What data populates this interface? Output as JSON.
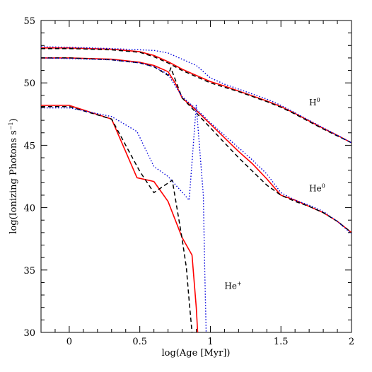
{
  "chart_data": {
    "type": "line",
    "xlabel": "log(Age [Myr])",
    "ylabel_main": "log(Ionizing Photons s",
    "ylabel_sup": "−1",
    "ylabel_close": ")",
    "xlim": [
      -0.2,
      2.0
    ],
    "ylim": [
      30,
      55
    ],
    "xticks": [
      0,
      0.5,
      1,
      1.5,
      2
    ],
    "xtick_labels": [
      "0",
      "0.5",
      "1",
      "1.5",
      "2"
    ],
    "yticks": [
      30,
      35,
      40,
      45,
      50,
      55
    ],
    "ytick_labels": [
      "30",
      "35",
      "40",
      "45",
      "50",
      "55"
    ],
    "grid": false,
    "annotations": [
      {
        "base": "H",
        "sup": "0",
        "x": 1.7,
        "y": 48.2
      },
      {
        "base": "He",
        "sup": "0",
        "x": 1.7,
        "y": 41.3
      },
      {
        "base": "He",
        "sup": "+",
        "x": 1.1,
        "y": 33.5
      }
    ],
    "series": [
      {
        "group": "H0",
        "color": "#ff0000",
        "dash": "solid",
        "width": 1.6,
        "x": [
          -0.2,
          0.0,
          0.3,
          0.5,
          0.6,
          0.7,
          0.8,
          0.9,
          1.0,
          1.1,
          1.2,
          1.3,
          1.4,
          1.5,
          1.6,
          1.7,
          1.8,
          1.9,
          2.0
        ],
        "y": [
          52.8,
          52.8,
          52.7,
          52.5,
          52.2,
          51.7,
          51.1,
          50.6,
          50.1,
          49.75,
          49.35,
          48.95,
          48.55,
          48.1,
          47.55,
          46.95,
          46.35,
          45.8,
          45.2
        ]
      },
      {
        "group": "H0",
        "color": "#000000",
        "dash": "6,4",
        "width": 1.5,
        "x": [
          -0.2,
          0.0,
          0.3,
          0.5,
          0.6,
          0.7,
          0.8,
          0.9,
          1.0,
          1.1,
          1.2,
          1.3,
          1.4,
          1.5,
          1.6,
          1.7,
          1.8,
          1.9,
          2.0
        ],
        "y": [
          52.75,
          52.75,
          52.65,
          52.45,
          52.1,
          51.6,
          51.0,
          50.5,
          50.0,
          49.65,
          49.3,
          48.9,
          48.5,
          48.05,
          47.5,
          46.9,
          46.3,
          45.75,
          45.2
        ]
      },
      {
        "group": "H0",
        "color": "#0000dd",
        "dash": "1.5,2.5",
        "width": 1.4,
        "x": [
          -0.2,
          0.0,
          0.3,
          0.6,
          0.7,
          0.8,
          0.9,
          1.0,
          1.1,
          1.2,
          1.3,
          1.4,
          1.5,
          1.6,
          1.7,
          1.8,
          1.9,
          2.0
        ],
        "y": [
          52.9,
          52.85,
          52.75,
          52.6,
          52.4,
          51.9,
          51.4,
          50.4,
          49.9,
          49.5,
          49.1,
          48.7,
          48.2,
          47.6,
          47.0,
          46.4,
          45.8,
          45.2
        ]
      },
      {
        "group": "He0",
        "color": "#ff0000",
        "dash": "solid",
        "width": 1.6,
        "x": [
          -0.2,
          0.0,
          0.3,
          0.5,
          0.6,
          0.7,
          0.75,
          0.8,
          0.9,
          1.0,
          1.1,
          1.2,
          1.3,
          1.4,
          1.5,
          1.6,
          1.7,
          1.8,
          1.9,
          2.0
        ],
        "y": [
          52.0,
          52.0,
          51.9,
          51.65,
          51.4,
          50.9,
          50.0,
          48.8,
          47.8,
          46.7,
          45.6,
          44.5,
          43.5,
          42.3,
          41.0,
          40.6,
          40.1,
          39.6,
          38.9,
          38.0
        ]
      },
      {
        "group": "He0",
        "color": "#000000",
        "dash": "6,4",
        "width": 1.5,
        "x": [
          -0.2,
          0.0,
          0.3,
          0.5,
          0.6,
          0.7,
          0.72,
          0.8,
          0.9,
          1.0,
          1.1,
          1.2,
          1.3,
          1.4,
          1.5,
          1.6,
          1.7,
          1.8,
          1.9,
          2.0
        ],
        "y": [
          52.0,
          52.0,
          51.85,
          51.6,
          51.3,
          50.6,
          51.2,
          48.8,
          47.6,
          46.4,
          45.2,
          44.0,
          42.9,
          41.8,
          41.0,
          40.5,
          40.1,
          39.6,
          38.9,
          38.0
        ]
      },
      {
        "group": "He0",
        "color": "#0000dd",
        "dash": "1.5,2.5",
        "width": 1.4,
        "x": [
          -0.2,
          0.0,
          0.3,
          0.5,
          0.6,
          0.7,
          0.8,
          0.9,
          1.0,
          1.1,
          1.2,
          1.3,
          1.4,
          1.5,
          1.6,
          1.7,
          1.8,
          1.9,
          2.0
        ],
        "y": [
          52.0,
          51.95,
          51.85,
          51.6,
          51.3,
          50.7,
          48.9,
          47.9,
          46.8,
          45.8,
          44.8,
          43.8,
          42.7,
          41.2,
          40.6,
          40.2,
          39.7,
          38.9,
          37.9
        ]
      },
      {
        "group": "He+",
        "color": "#ff0000",
        "dash": "solid",
        "width": 1.6,
        "x": [
          -0.2,
          0.0,
          0.3,
          0.48,
          0.6,
          0.7,
          0.8,
          0.87,
          0.9,
          0.91
        ],
        "y": [
          48.2,
          48.2,
          47.1,
          42.4,
          42.1,
          40.5,
          37.6,
          36.2,
          32.0,
          30.0
        ]
      },
      {
        "group": "He+",
        "color": "#000000",
        "dash": "6,4",
        "width": 1.5,
        "x": [
          -0.2,
          0.0,
          0.3,
          0.5,
          0.6,
          0.73,
          0.8,
          0.83,
          0.85,
          0.87
        ],
        "y": [
          48.1,
          48.1,
          47.1,
          42.9,
          41.2,
          42.2,
          37.5,
          35.2,
          32.5,
          30.0
        ]
      },
      {
        "group": "He+",
        "color": "#0000dd",
        "dash": "1.5,2.5",
        "width": 1.4,
        "x": [
          -0.2,
          0.0,
          0.3,
          0.48,
          0.6,
          0.7,
          0.85,
          0.9,
          0.95,
          0.96,
          0.97
        ],
        "y": [
          48.0,
          48.0,
          47.3,
          46.1,
          43.3,
          42.5,
          40.6,
          48.2,
          41.0,
          35.0,
          30.0
        ]
      }
    ]
  }
}
